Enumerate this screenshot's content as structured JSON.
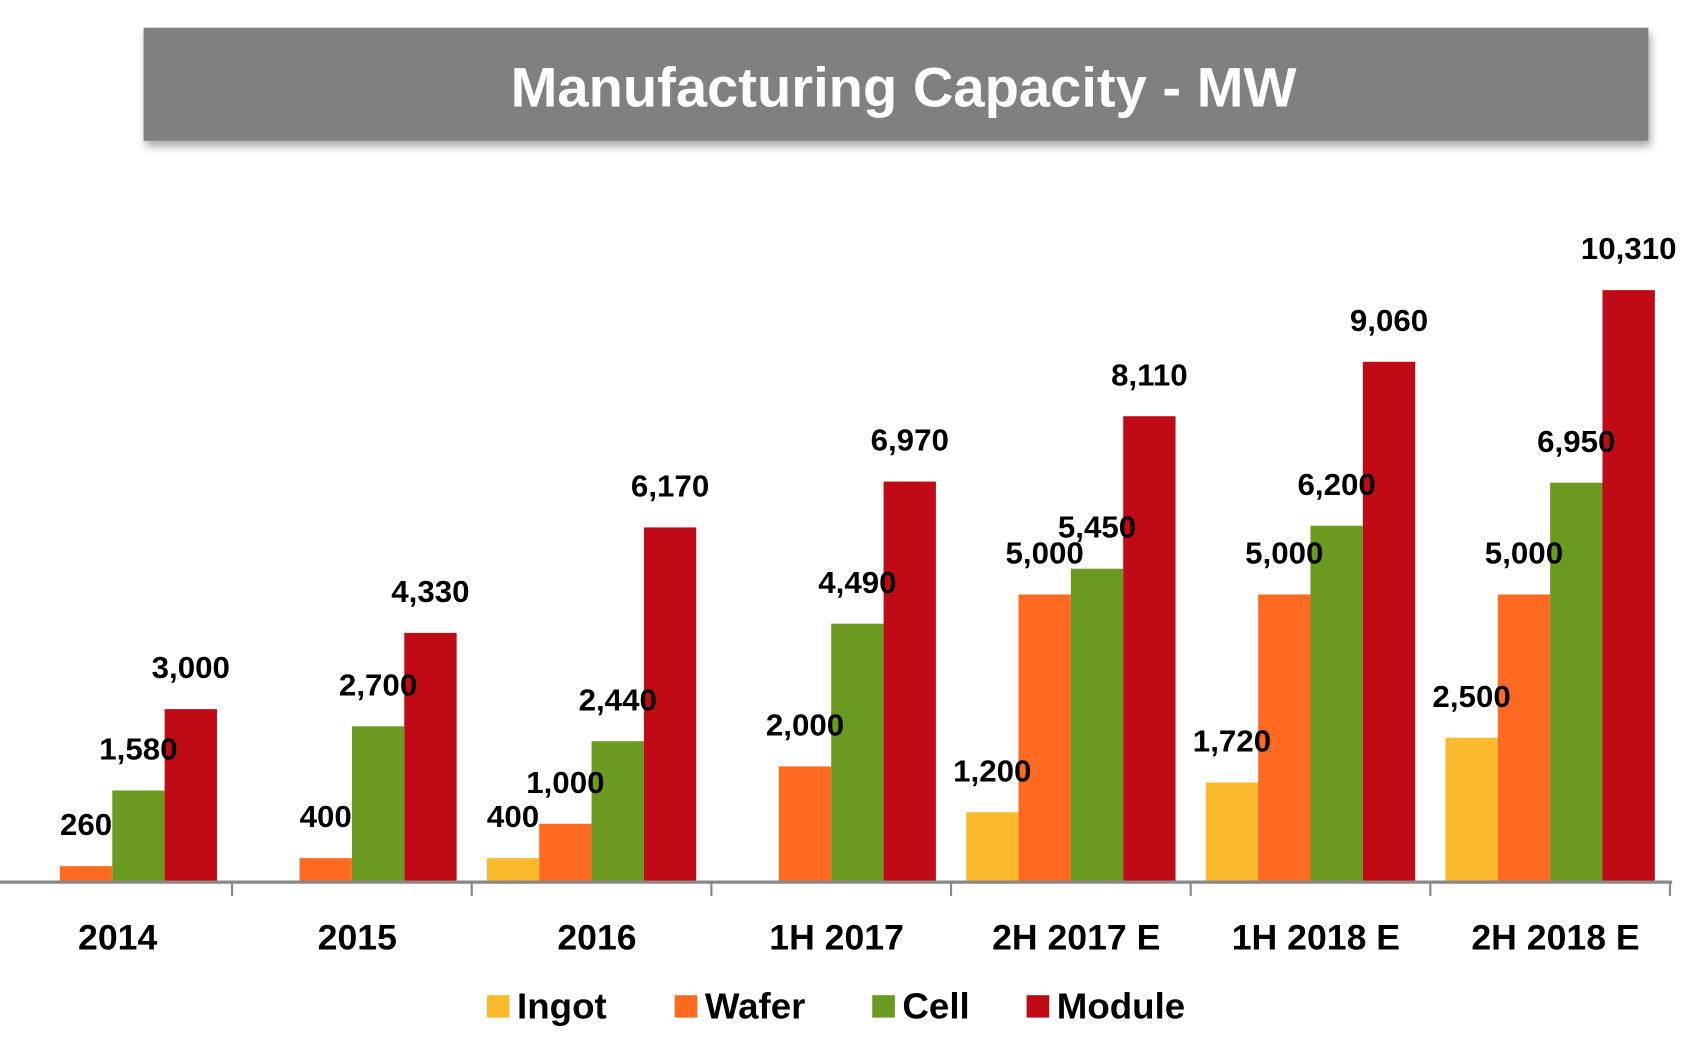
{
  "chart_data": {
    "type": "bar",
    "title": "Manufacturing Capacity - MW",
    "xlabel": "",
    "ylabel": "",
    "ylim": [
      0,
      10310
    ],
    "grid": false,
    "legend_position": "bottom",
    "categories": [
      "2014",
      "2015",
      "2016",
      "1H 2017",
      "2H 2017 E",
      "1H 2018 E",
      "2H 2018 E"
    ],
    "series": [
      {
        "name": "Ingot",
        "color": "#FBBA2E",
        "values": [
          null,
          null,
          400,
          null,
          1200,
          1720,
          2500
        ],
        "labels": [
          "",
          "",
          "400",
          "",
          "1,200",
          "1,720",
          "2,500"
        ]
      },
      {
        "name": "Wafer",
        "color": "#FF6A22",
        "values": [
          260,
          400,
          1000,
          2000,
          5000,
          5000,
          5000
        ],
        "labels": [
          "260",
          "400",
          "1,000",
          "2,000",
          "5,000",
          "5,000",
          "5,000"
        ]
      },
      {
        "name": "Cell",
        "color": "#6A9A1F",
        "values": [
          1580,
          2700,
          2440,
          4490,
          5450,
          6200,
          6950
        ],
        "labels": [
          "1,580",
          "2,700",
          "2,440",
          "4,490",
          "5,450",
          "6,200",
          "6,950"
        ]
      },
      {
        "name": "Module",
        "color": "#C00A16",
        "values": [
          3000,
          4330,
          6170,
          6970,
          8110,
          9060,
          10310
        ],
        "labels": [
          "3,000",
          "4,330",
          "6,170",
          "6,970",
          "8,110",
          "9,060",
          "10,310"
        ]
      }
    ],
    "title_bar_color": "#808080"
  }
}
